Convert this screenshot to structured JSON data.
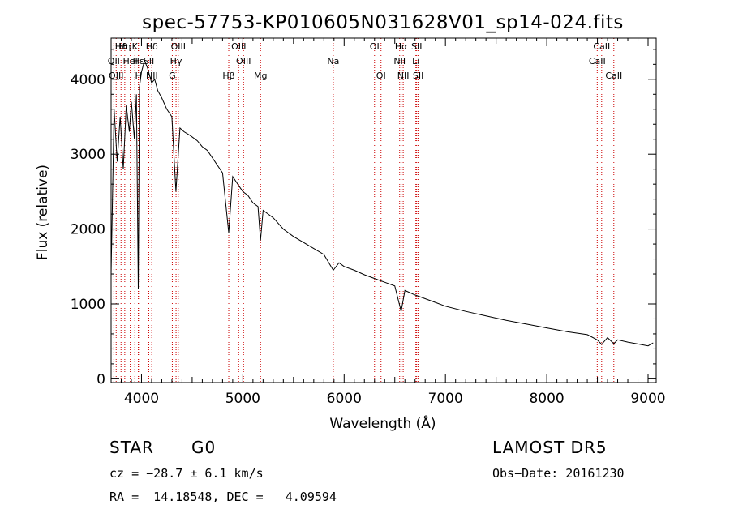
{
  "title": "spec-57753-KP010605N031628V01_sp14-024.fits",
  "info": {
    "class_label": "STAR",
    "subclass_label": "G0",
    "survey": "LAMOST DR5",
    "cz": "cz = −28.7 ± 6.1 km/s",
    "obs_date": "Obs−Date: 20161230",
    "coords": "RA =  14.18548, DEC =   4.09594"
  },
  "chart_data": {
    "type": "line",
    "title": "spec-57753-KP010605N031628V01_sp14-024.fits",
    "xlabel": "Wavelength (Å)",
    "ylabel": "Flux (relative)",
    "xlim": [
      3700,
      9080
    ],
    "ylim": [
      -50,
      4550
    ],
    "xticks": [
      4000,
      5000,
      6000,
      7000,
      8000,
      9000
    ],
    "yticks": [
      0,
      1000,
      2000,
      3000,
      4000
    ],
    "grid": false,
    "line_color": "#000000",
    "marker_color": "#cc0000",
    "series": [
      {
        "x": [
          3700,
          3730,
          3760,
          3790,
          3820,
          3850,
          3880,
          3900,
          3930,
          3950,
          3968,
          3980,
          4000,
          4030,
          4060,
          4100,
          4130,
          4160,
          4200,
          4250,
          4300,
          4340,
          4380,
          4420,
          4480,
          4550,
          4600,
          4650,
          4700,
          4750,
          4800,
          4861,
          4900,
          4950,
          5000,
          5050,
          5100,
          5150,
          5175,
          5200,
          5300,
          5400,
          5500,
          5600,
          5700,
          5800,
          5893,
          5950,
          6000,
          6100,
          6200,
          6300,
          6400,
          6500,
          6563,
          6600,
          6700,
          6800,
          6900,
          7000,
          7200,
          7400,
          7600,
          7800,
          8000,
          8200,
          8400,
          8498,
          8542,
          8600,
          8662,
          8700,
          8800,
          8900,
          9000,
          9050
        ],
        "y": [
          1400,
          3600,
          2900,
          3500,
          2800,
          3650,
          3300,
          3700,
          3200,
          3800,
          1200,
          3900,
          4100,
          4250,
          4150,
          3950,
          4000,
          3850,
          3750,
          3600,
          3500,
          2500,
          3350,
          3300,
          3250,
          3180,
          3100,
          3050,
          2950,
          2850,
          2750,
          1950,
          2700,
          2600,
          2500,
          2450,
          2350,
          2300,
          1850,
          2250,
          2150,
          2000,
          1900,
          1820,
          1740,
          1660,
          1450,
          1550,
          1500,
          1450,
          1390,
          1340,
          1290,
          1240,
          900,
          1180,
          1120,
          1070,
          1020,
          970,
          900,
          840,
          780,
          730,
          680,
          630,
          590,
          520,
          460,
          550,
          470,
          520,
          490,
          465,
          440,
          480
        ]
      }
    ],
    "lines": [
      {
        "wl": 3727,
        "label": "OII",
        "row": 1
      },
      {
        "wl": 3750,
        "label": "OIII",
        "row": 2
      },
      {
        "wl": 3798,
        "label": "Hϑ",
        "row": 0
      },
      {
        "wl": 3835,
        "label": "Hη",
        "row": 0
      },
      {
        "wl": 3889,
        "label": "HeI",
        "row": 1
      },
      {
        "wl": 3934,
        "label": "K",
        "row": 0
      },
      {
        "wl": 3969,
        "label": "H",
        "row": 2
      },
      {
        "wl": 3970,
        "label": "Hε",
        "row": 1
      },
      {
        "wl": 4072,
        "label": "SII",
        "row": 1
      },
      {
        "wl": 4102,
        "label": "Hδ",
        "row": 0
      },
      {
        "wl": 4103,
        "label": "NII",
        "row": 2
      },
      {
        "wl": 4304,
        "label": "G",
        "row": 2
      },
      {
        "wl": 4341,
        "label": "Hγ",
        "row": 1
      },
      {
        "wl": 4363,
        "label": "OIII",
        "row": 0
      },
      {
        "wl": 4861,
        "label": "Hβ",
        "row": 2
      },
      {
        "wl": 4959,
        "label": "OIII",
        "row": 0
      },
      {
        "wl": 5007,
        "label": "OIII",
        "row": 1
      },
      {
        "wl": 5175,
        "label": "Mg",
        "row": 2
      },
      {
        "wl": 5893,
        "label": "Na",
        "row": 1
      },
      {
        "wl": 6300,
        "label": "OI",
        "row": 0
      },
      {
        "wl": 6364,
        "label": "OI",
        "row": 2
      },
      {
        "wl": 6548,
        "label": "NII",
        "row": 1
      },
      {
        "wl": 6563,
        "label": "Hα",
        "row": 0
      },
      {
        "wl": 6583,
        "label": "NII",
        "row": 2
      },
      {
        "wl": 6708,
        "label": "Li",
        "row": 1
      },
      {
        "wl": 6716,
        "label": "SII",
        "row": 0
      },
      {
        "wl": 6731,
        "label": "SII",
        "row": 2
      },
      {
        "wl": 8498,
        "label": "CaII",
        "row": 1
      },
      {
        "wl": 8542,
        "label": "CaII",
        "row": 0
      },
      {
        "wl": 8662,
        "label": "CaII",
        "row": 2
      }
    ]
  }
}
